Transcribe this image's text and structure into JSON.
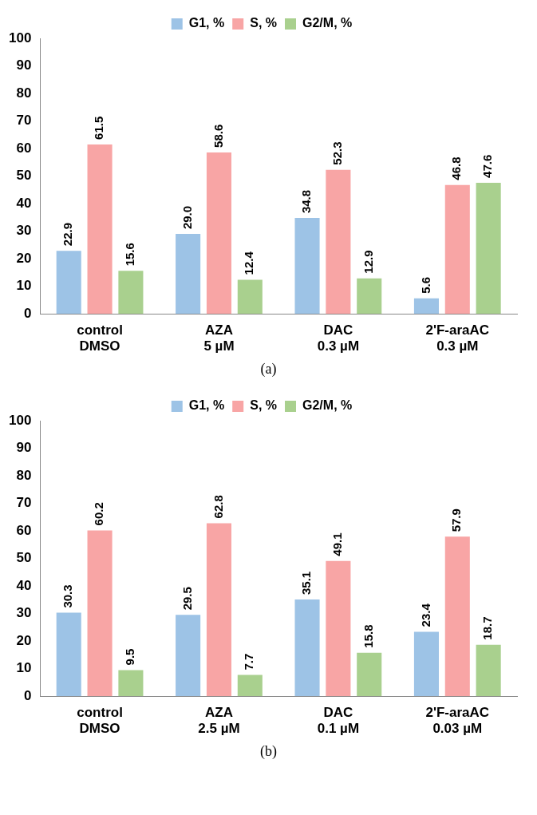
{
  "chart_data": [
    {
      "type": "bar",
      "categories": [
        "control DMSO",
        "AZA 5 µM",
        "DAC 0.3 µM",
        "2'F-araAC 0.3 µM"
      ],
      "series": [
        {
          "name": "G1, %",
          "color": "#9dc3e6",
          "values": [
            22.9,
            29.0,
            34.8,
            5.6
          ],
          "value_labels": [
            "22.9",
            "29.0",
            "34.8",
            "5.6"
          ]
        },
        {
          "name": "S, %",
          "color": "#f8a5a5",
          "values": [
            61.5,
            58.6,
            52.3,
            46.8
          ],
          "value_labels": [
            "61.5",
            "58.6",
            "52.3",
            "46.8"
          ]
        },
        {
          "name": "G2/M, %",
          "color": "#a9d08e",
          "values": [
            15.6,
            12.4,
            12.9,
            47.6
          ],
          "value_labels": [
            "15.6",
            "12.4",
            "12.9",
            "47.6"
          ]
        }
      ],
      "ylim": [
        0,
        100
      ],
      "yticks": [
        0,
        10,
        20,
        30,
        40,
        50,
        60,
        70,
        80,
        90,
        100
      ],
      "grid": false,
      "legend": "top",
      "annotations": [
        "(a)"
      ]
    },
    {
      "type": "bar",
      "categories": [
        "control DMSO",
        "AZA 2.5 µM",
        "DAC 0.1 µM",
        "2'F-araAC 0.03 µM"
      ],
      "series": [
        {
          "name": "G1, %",
          "color": "#9dc3e6",
          "values": [
            30.3,
            29.5,
            35.1,
            23.4
          ],
          "value_labels": [
            "30.3",
            "29.5",
            "35.1",
            "23.4"
          ]
        },
        {
          "name": "S, %",
          "color": "#f8a5a5",
          "values": [
            60.2,
            62.8,
            49.1,
            57.9
          ],
          "value_labels": [
            "60.2",
            "62.8",
            "49.1",
            "57.9"
          ]
        },
        {
          "name": "G2/M, %",
          "color": "#a9d08e",
          "values": [
            9.5,
            7.7,
            15.8,
            18.7
          ],
          "value_labels": [
            "9.5",
            "7.7",
            "15.8",
            "18.7"
          ]
        }
      ],
      "ylim": [
        0,
        100
      ],
      "yticks": [
        0,
        10,
        20,
        30,
        40,
        50,
        60,
        70,
        80,
        90,
        100
      ],
      "grid": false,
      "legend": "top",
      "annotations": [
        "(b)"
      ]
    }
  ]
}
